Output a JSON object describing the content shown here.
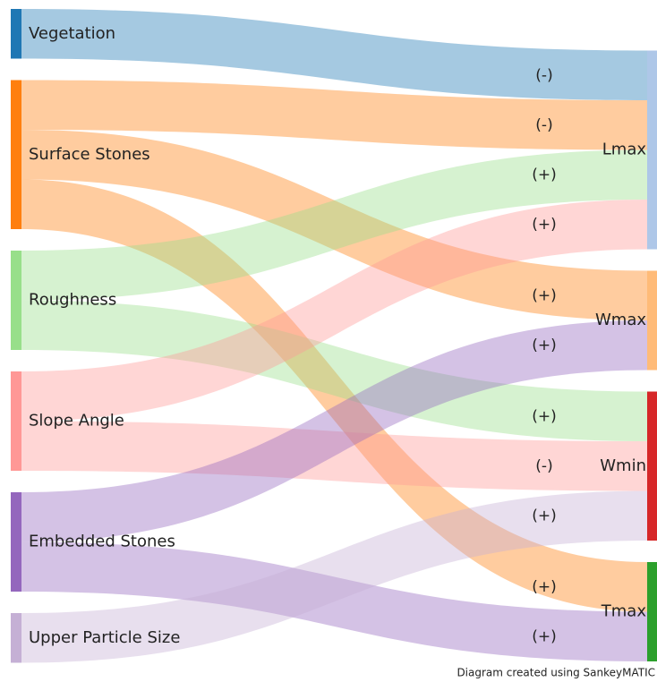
{
  "nodes": [
    {
      "name": "Vegetation",
      "color": "#1f77b4",
      "side": "left"
    },
    {
      "name": "Surface Stones",
      "color": "#ff7f0e",
      "side": "left"
    },
    {
      "name": "Roughness",
      "color": "#98df8a",
      "side": "left"
    },
    {
      "name": "Slope Angle",
      "color": "#ff9896",
      "side": "left"
    },
    {
      "name": "Embedded Stones",
      "color": "#9467bd",
      "side": "left"
    },
    {
      "name": "Upper Particle Size",
      "color": "#c5b0d5",
      "side": "left"
    },
    {
      "name": "Lmax",
      "color": "#aec7e8",
      "side": "right"
    },
    {
      "name": "Wmax",
      "color": "#ffbb78",
      "side": "right"
    },
    {
      "name": "Wmin",
      "color": "#d62728",
      "side": "right"
    },
    {
      "name": "Tmax",
      "color": "#2ca02c",
      "side": "right"
    }
  ],
  "flows": [
    {
      "source": 0,
      "target": 6,
      "value": 1,
      "label": "(-)"
    },
    {
      "source": 1,
      "target": 6,
      "value": 1,
      "label": "(-)"
    },
    {
      "source": 1,
      "target": 7,
      "value": 1,
      "label": "(+)"
    },
    {
      "source": 1,
      "target": 9,
      "value": 1,
      "label": "(+)"
    },
    {
      "source": 2,
      "target": 6,
      "value": 1,
      "label": "(+)"
    },
    {
      "source": 2,
      "target": 8,
      "value": 1,
      "label": "(+)"
    },
    {
      "source": 3,
      "target": 6,
      "value": 1,
      "label": "(+)"
    },
    {
      "source": 3,
      "target": 8,
      "value": 1,
      "label": "(-)"
    },
    {
      "source": 4,
      "target": 7,
      "value": 1,
      "label": "(+)"
    },
    {
      "source": 4,
      "target": 9,
      "value": 1,
      "label": "(+)"
    },
    {
      "source": 5,
      "target": 8,
      "value": 1,
      "label": "(+)"
    }
  ],
  "credit": "Diagram created using SankeyMATIC"
}
